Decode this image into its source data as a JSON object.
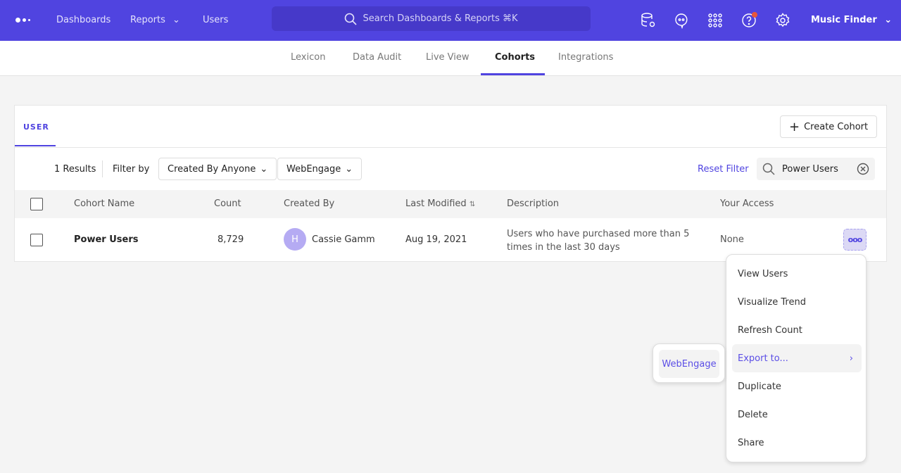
{
  "topnav": {
    "items": [
      "Dashboards",
      "Reports",
      "Users"
    ],
    "search_placeholder": "Search Dashboards & Reports ⌘K",
    "project": "Music Finder",
    "icons": [
      "data-settings-icon",
      "chat-icon",
      "apps-grid-icon",
      "help-icon",
      "gear-icon"
    ],
    "accent": "#5044e0",
    "notification_color": "#e8563a"
  },
  "subnav": {
    "tabs": [
      "Lexicon",
      "Data Audit",
      "Live View",
      "Cohorts",
      "Integrations"
    ],
    "active": "Cohorts"
  },
  "card": {
    "tab": "USER",
    "create_label": "Create Cohort",
    "filters": {
      "results": "1 Results",
      "filter_by": "Filter by",
      "created_by": "Created By Anyone",
      "source": "WebEngage",
      "reset": "Reset Filter",
      "search_value": "Power Users"
    },
    "columns": [
      "Cohort Name",
      "Count",
      "Created By",
      "Last Modified",
      "Description",
      "Your Access"
    ],
    "rows": [
      {
        "name": "Power Users",
        "count": "8,729",
        "avatar": "H",
        "created_by": "Cassie Gamm",
        "modified": "Aug 19, 2021",
        "description_l1": "Users who have purchased more than 5",
        "description_l2": "times in the last 30 days",
        "access": "None"
      }
    ]
  },
  "menu": {
    "items": [
      "View Users",
      "Visualize Trend",
      "Refresh Count",
      "Export to...",
      "Duplicate",
      "Delete",
      "Share"
    ],
    "highlighted": "Export to...",
    "submenu": [
      "WebEngage"
    ]
  }
}
